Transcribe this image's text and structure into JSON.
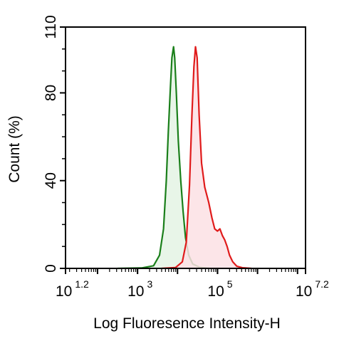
{
  "chart_data": {
    "type": "area",
    "xlabel": "Log Fluoresence Intensity-H",
    "ylabel": "Count  (%)",
    "log_x": true,
    "xlim": [
      1.2,
      7.2
    ],
    "ylim": [
      0,
      110
    ],
    "x_ticks": [
      {
        "base": "10",
        "exp": "1.2",
        "value": 1.2
      },
      {
        "base": "10",
        "exp": "3",
        "value": 3
      },
      {
        "base": "10",
        "exp": "5",
        "value": 5
      },
      {
        "base": "10",
        "exp": "7.2",
        "value": 7.2
      }
    ],
    "y_ticks": [
      {
        "label": "0",
        "value": 0
      },
      {
        "label": "40",
        "value": 40
      },
      {
        "label": "80",
        "value": 80
      },
      {
        "label": "110",
        "value": 110
      }
    ],
    "grid": false,
    "series": [
      {
        "color": "#1a7f1a",
        "fill": "#e4f3e4",
        "points": [
          [
            2.5,
            0
          ],
          [
            3.1,
            0.2
          ],
          [
            3.4,
            1.2
          ],
          [
            3.55,
            6
          ],
          [
            3.65,
            18
          ],
          [
            3.72,
            40
          ],
          [
            3.77,
            62
          ],
          [
            3.82,
            82
          ],
          [
            3.86,
            96
          ],
          [
            3.9,
            101
          ],
          [
            3.93,
            96
          ],
          [
            3.97,
            80
          ],
          [
            4.02,
            58
          ],
          [
            4.08,
            40
          ],
          [
            4.14,
            26
          ],
          [
            4.2,
            14
          ],
          [
            4.28,
            6
          ],
          [
            4.38,
            2
          ],
          [
            4.55,
            0.5
          ],
          [
            4.8,
            0
          ]
        ]
      },
      {
        "color": "#e01b1b",
        "fill": "#fbe1e4",
        "points": [
          [
            3.6,
            0
          ],
          [
            3.95,
            0.4
          ],
          [
            4.12,
            3
          ],
          [
            4.22,
            12
          ],
          [
            4.3,
            38
          ],
          [
            4.36,
            70
          ],
          [
            4.41,
            92
          ],
          [
            4.45,
            101
          ],
          [
            4.49,
            96
          ],
          [
            4.54,
            70
          ],
          [
            4.6,
            48
          ],
          [
            4.68,
            37
          ],
          [
            4.78,
            30
          ],
          [
            4.86,
            23
          ],
          [
            4.93,
            18
          ],
          [
            5.0,
            17
          ],
          [
            5.06,
            18
          ],
          [
            5.12,
            15
          ],
          [
            5.18,
            13
          ],
          [
            5.24,
            10
          ],
          [
            5.3,
            6
          ],
          [
            5.38,
            3
          ],
          [
            5.48,
            1
          ],
          [
            5.62,
            0.3
          ],
          [
            5.85,
            0
          ]
        ]
      }
    ]
  }
}
